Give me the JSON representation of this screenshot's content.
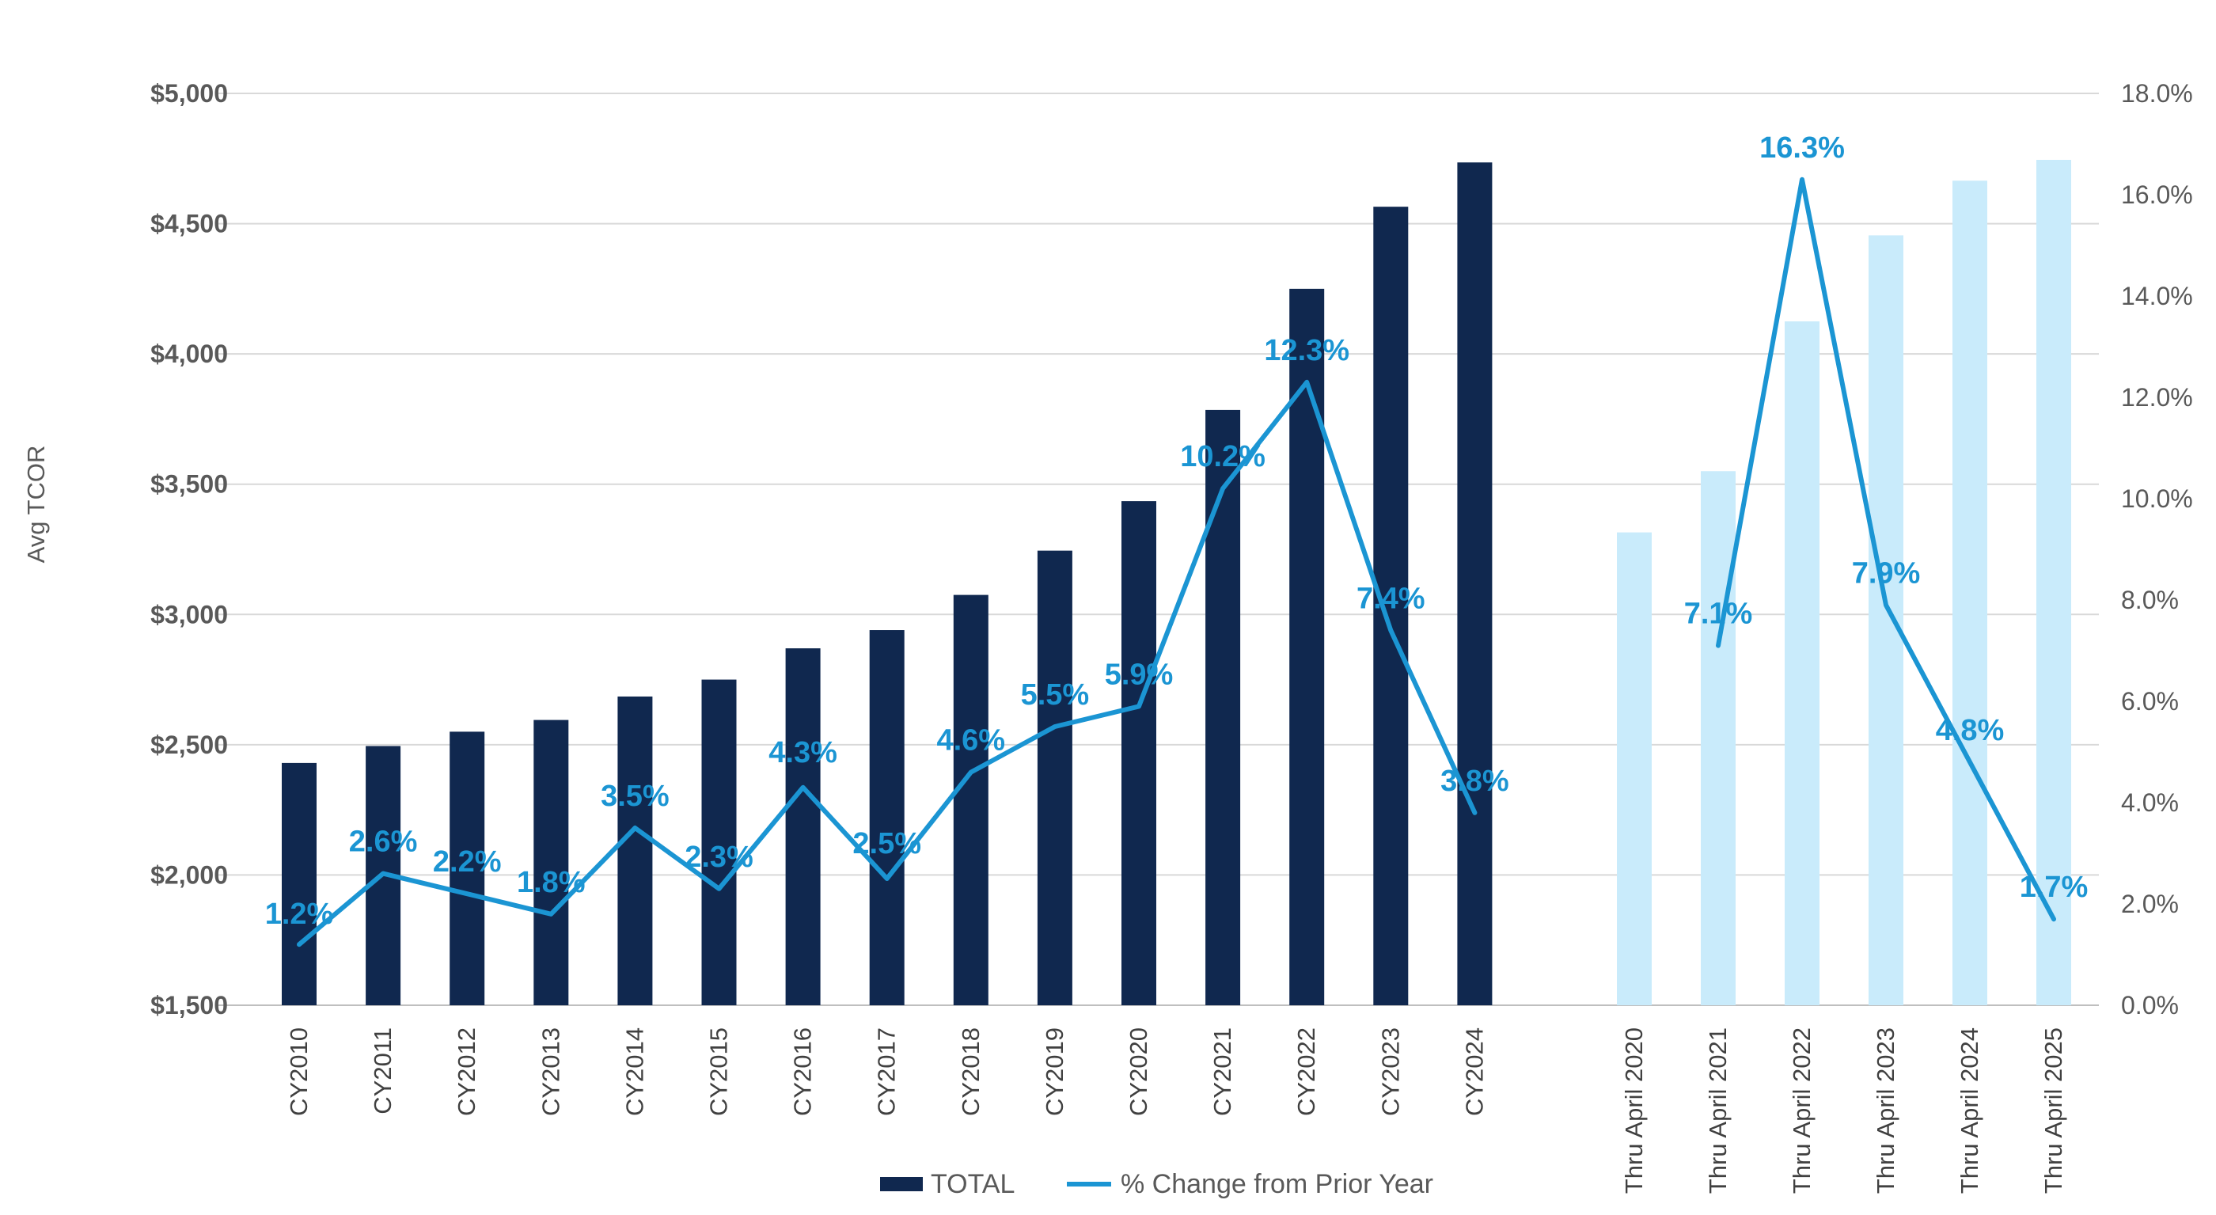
{
  "chart_data": {
    "type": "bar",
    "ylabel": "Avg TCOR",
    "ylim": [
      1500,
      5000
    ],
    "y2lim": [
      0,
      18
    ],
    "y_ticks": [
      "$1,500",
      "$2,000",
      "$2,500",
      "$3,000",
      "$3,500",
      "$4,000",
      "$4,500",
      "$5,000"
    ],
    "y2_ticks": [
      "0.0%",
      "2.0%",
      "4.0%",
      "6.0%",
      "8.0%",
      "10.0%",
      "12.0%",
      "14.0%",
      "16.0%",
      "18.0%"
    ],
    "legend": {
      "position": "bottom",
      "total_label": "TOTAL",
      "change_label": "% Change from Prior Year"
    },
    "colors": {
      "dark_bar": "#10284f",
      "light_bar": "#c9ebfb",
      "line": "#1b95d3",
      "grid": "#d9d9d9"
    },
    "groups": [
      {
        "style": "dark",
        "categories": [
          "CY2010",
          "CY2011",
          "CY2012",
          "CY2013",
          "CY2014",
          "CY2015",
          "CY2016",
          "CY2017",
          "CY2018",
          "CY2019",
          "CY2020",
          "CY2021",
          "CY2022",
          "CY2023",
          "CY2024"
        ],
        "totals": [
          2430,
          2495,
          2550,
          2595,
          2685,
          2750,
          2870,
          2940,
          3075,
          3245,
          3435,
          3785,
          4250,
          4565,
          4735
        ],
        "pct_change": [
          1.2,
          2.6,
          2.2,
          1.8,
          3.5,
          2.3,
          4.3,
          2.5,
          4.6,
          5.5,
          5.9,
          10.2,
          12.3,
          7.4,
          3.8
        ],
        "pct_labels": [
          "1.2%",
          "2.6%",
          "2.2%",
          "1.8%",
          "3.5%",
          "2.3%",
          "4.3%",
          "2.5%",
          "4.6%",
          "5.5%",
          "5.9%",
          "10.2%",
          "12.3%",
          "7.4%",
          "3.8%"
        ]
      },
      {
        "style": "light",
        "categories": [
          "Thru April 2020",
          "Thru April 2021",
          "Thru April 2022",
          "Thru April 2023",
          "Thru April 2024",
          "Thru April 2025"
        ],
        "totals": [
          3315,
          3550,
          4125,
          4455,
          4665,
          4745
        ],
        "pct_change": [
          null,
          7.1,
          16.3,
          7.9,
          4.8,
          1.7
        ],
        "pct_labels": [
          null,
          "7.1%",
          "16.3%",
          "7.9%",
          "4.8%",
          "1.7%"
        ]
      }
    ]
  }
}
